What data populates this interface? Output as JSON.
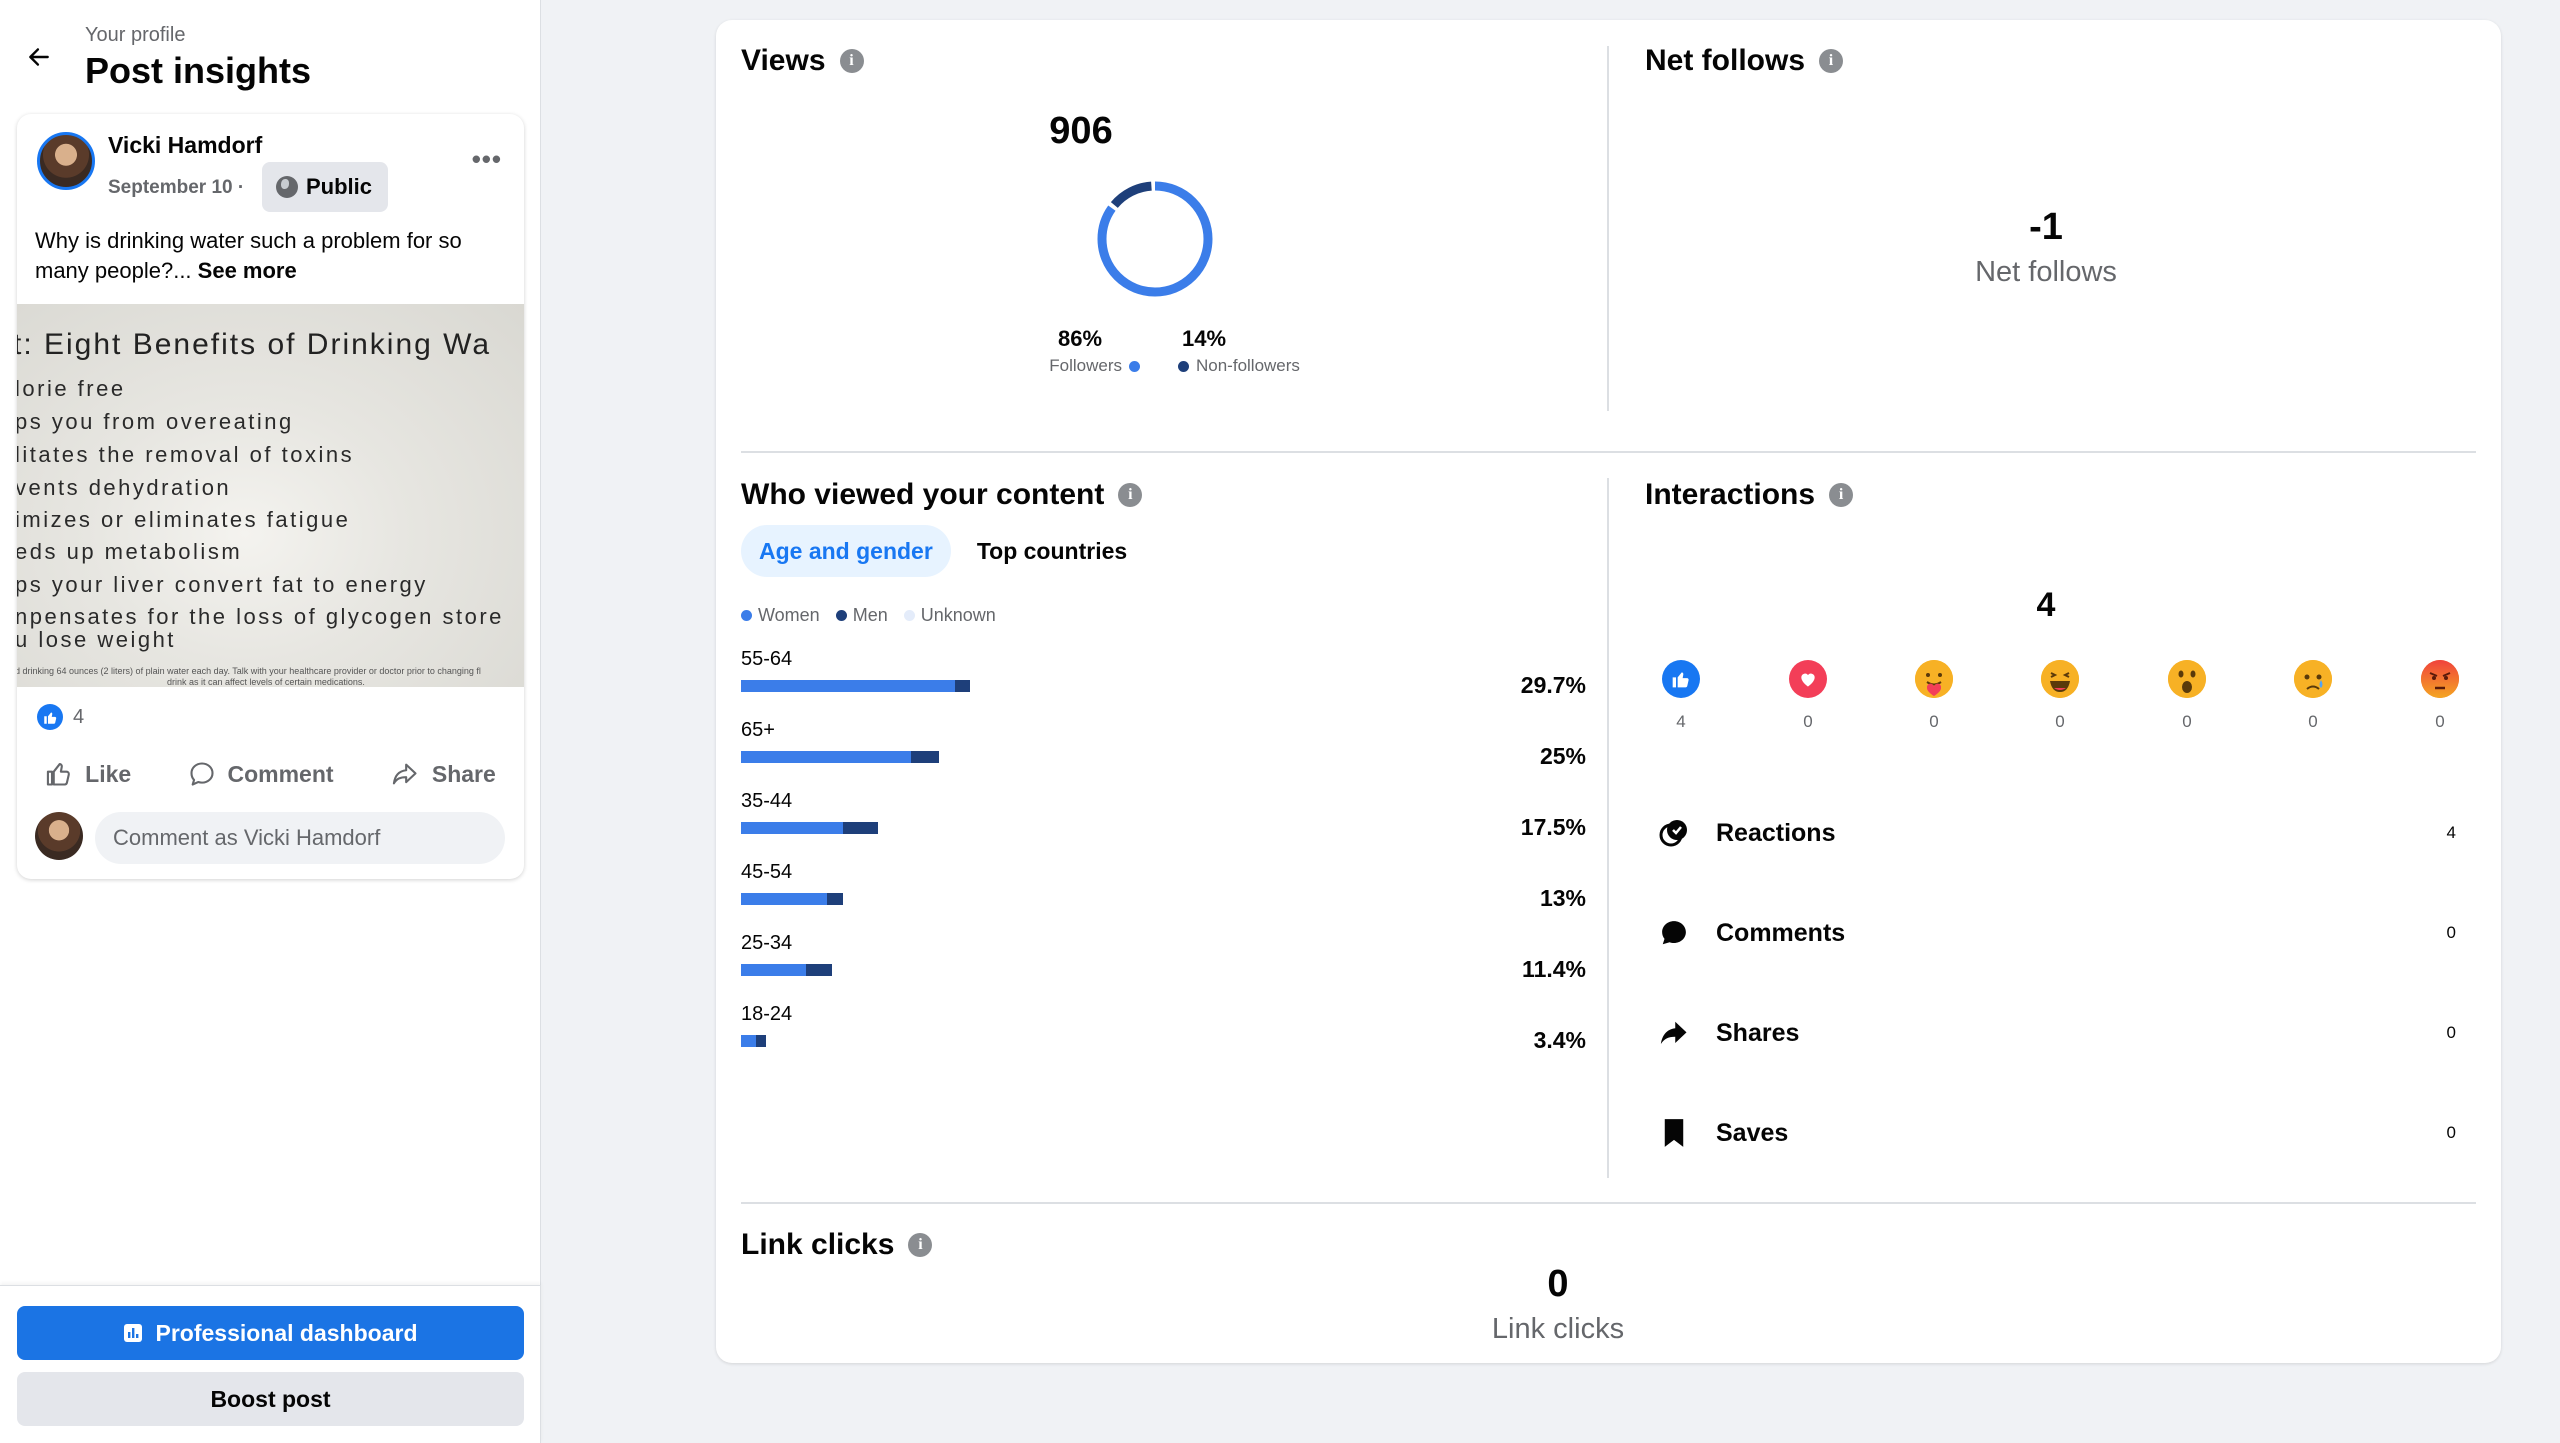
{
  "header": {
    "breadcrumb": "Your profile",
    "title": "Post insights"
  },
  "post": {
    "author": "Vicki Hamdorf",
    "date": "September 10 ·",
    "audience": "Public",
    "text": "Why is drinking water such a problem for so many people?...",
    "see_more": "See more",
    "image_text": {
      "title": "t: Eight Benefits of Drinking Wa",
      "lines": [
        "lorie free",
        "ps you from overeating",
        "litates the removal of toxins",
        "vents dehydration",
        "imizes or eliminates fatigue",
        "eds up metabolism",
        "ps your liver convert fat to energy",
        "npensates for the loss of glycogen store",
        "u lose weight"
      ],
      "footnote_1": "d drinking 64 ounces (2 liters) of plain water each day. Talk with your healthcare provider or doctor prior to changing fl",
      "footnote_2": "drink as it can affect levels of certain medications."
    },
    "reaction_count": "4",
    "actions": {
      "like": "Like",
      "comment": "Comment",
      "share": "Share"
    },
    "comment_placeholder": "Comment as Vicki Hamdorf"
  },
  "footer": {
    "pro_dashboard": "Professional dashboard",
    "boost": "Boost post"
  },
  "views": {
    "title": "Views",
    "total": "906",
    "followers_pct": "86%",
    "followers_label": "Followers",
    "nonfollowers_pct": "14%",
    "nonfollowers_label": "Non-followers",
    "followers_fraction": 0.86
  },
  "net_follows": {
    "title": "Net follows",
    "value": "-1",
    "label": "Net follows"
  },
  "audience": {
    "title": "Who viewed your content",
    "tabs": [
      "Age and gender",
      "Top countries"
    ],
    "legend": [
      "Women",
      "Men",
      "Unknown"
    ],
    "rows": [
      {
        "age": "55-64",
        "pct": "29.7%",
        "women": 23.0,
        "men": 1.6
      },
      {
        "age": "65+",
        "pct": "25%",
        "women": 18.3,
        "men": 3.0
      },
      {
        "age": "35-44",
        "pct": "17.5%",
        "women": 11.0,
        "men": 3.7
      },
      {
        "age": "45-54",
        "pct": "13%",
        "women": 9.2,
        "men": 1.8
      },
      {
        "age": "25-34",
        "pct": "11.4%",
        "women": 7.0,
        "men": 2.8
      },
      {
        "age": "18-24",
        "pct": "3.4%",
        "women": 1.6,
        "men": 1.1
      }
    ]
  },
  "interactions": {
    "title": "Interactions",
    "total": "4",
    "reactions": [
      {
        "name": "like",
        "count": "4"
      },
      {
        "name": "love",
        "count": "0"
      },
      {
        "name": "care",
        "count": "0"
      },
      {
        "name": "haha",
        "count": "0"
      },
      {
        "name": "wow",
        "count": "0"
      },
      {
        "name": "sad",
        "count": "0"
      },
      {
        "name": "angry",
        "count": "0"
      }
    ],
    "rows": [
      {
        "label": "Reactions",
        "value": "4"
      },
      {
        "label": "Comments",
        "value": "0"
      },
      {
        "label": "Shares",
        "value": "0"
      },
      {
        "label": "Saves",
        "value": "0"
      }
    ]
  },
  "link_clicks": {
    "title": "Link clicks",
    "value": "0",
    "label": "Link clicks"
  },
  "colors": {
    "accent": "#1877f2",
    "women": "#3b7de9",
    "men": "#1e3f7a",
    "unknown": "#e4ecfa"
  }
}
